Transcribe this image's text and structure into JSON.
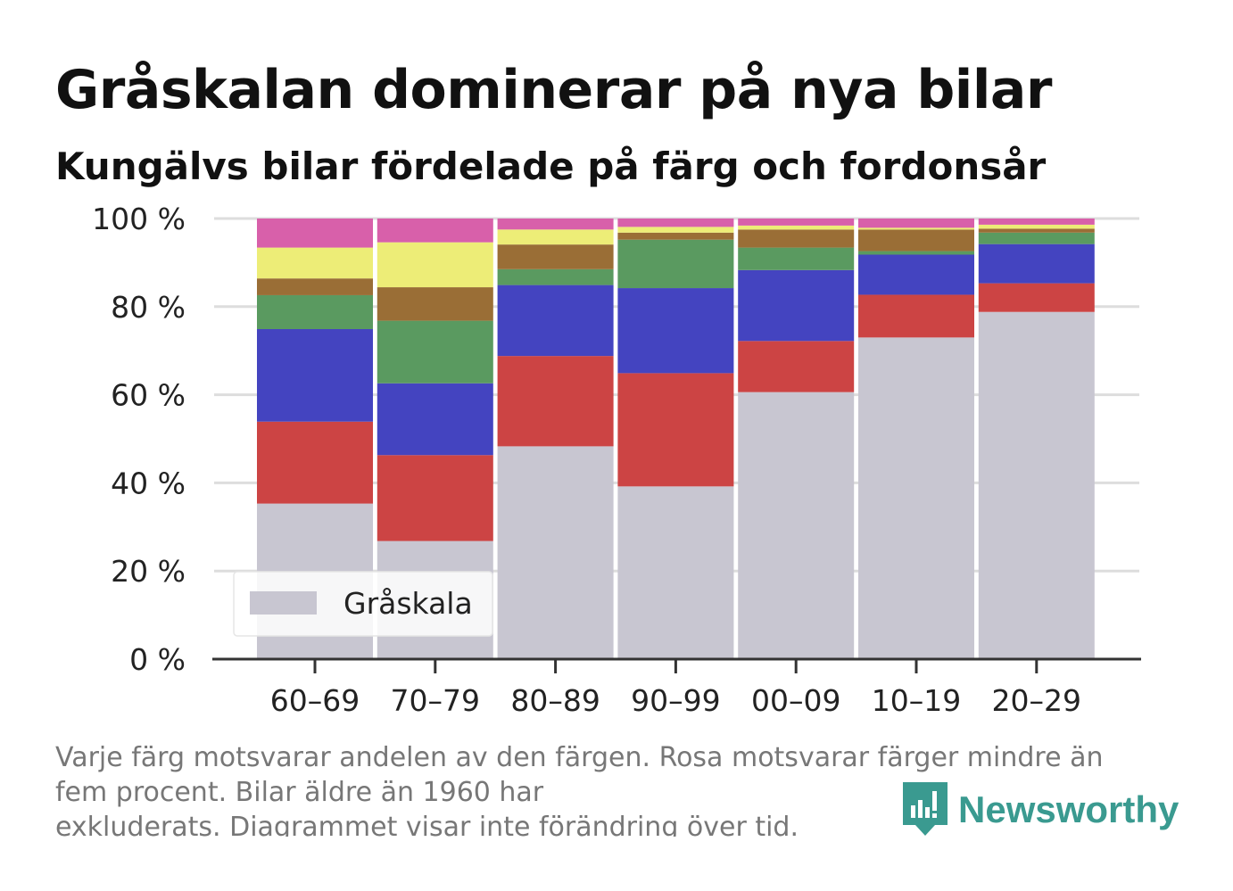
{
  "header": {
    "title": "Gråskalan dominerar på nya bilar",
    "subtitle": "Kungälvs bilar fördelade på färg och fordonsår"
  },
  "footnote": {
    "line1": "Varje färg motsvarar andelen av den färgen. Rosa motsvarar färger mindre än",
    "line2": "fem procent. Bilar äldre än 1960 har",
    "line3": "exkluderats. Diagrammet visar inte förändring över tid."
  },
  "brand": {
    "name": "Newsworthy",
    "icon": "newsworthy-logo-icon",
    "color": "#3a9a90"
  },
  "chart_data": {
    "type": "bar",
    "stacked": true,
    "categories": [
      "60–69",
      "70–79",
      "80–89",
      "90–99",
      "00–09",
      "10–19",
      "20–29"
    ],
    "ylim": [
      0,
      100
    ],
    "yticks": [
      0,
      20,
      40,
      60,
      80,
      100
    ],
    "ytick_labels": [
      "0 %",
      "20 %",
      "40 %",
      "60 %",
      "80 %",
      "100 %"
    ],
    "grid": true,
    "legend": {
      "position": "bottom-left",
      "entries": [
        "Gråskala"
      ]
    },
    "series": [
      {
        "name": "Gråskala",
        "color": "#c8c6d1",
        "values": [
          35.3,
          26.8,
          48.3,
          39.2,
          60.6,
          73.0,
          78.8
        ]
      },
      {
        "color": "#cc4444",
        "values": [
          18.6,
          19.5,
          20.5,
          25.7,
          11.6,
          9.7,
          6.5
        ]
      },
      {
        "color": "#4444c0",
        "values": [
          21.0,
          16.3,
          16.1,
          19.3,
          16.1,
          9.1,
          8.9
        ]
      },
      {
        "color": "#5a9a60",
        "values": [
          7.7,
          14.2,
          3.6,
          11.0,
          5.1,
          0.8,
          2.6
        ]
      },
      {
        "color": "#9a6e36",
        "values": [
          3.8,
          7.6,
          5.6,
          1.6,
          4.1,
          4.9,
          0.9
        ]
      },
      {
        "color": "#eded77",
        "values": [
          7.0,
          10.2,
          3.4,
          1.3,
          0.9,
          0.4,
          0.9
        ]
      },
      {
        "color": "#d860aa",
        "values": [
          6.6,
          5.4,
          2.5,
          1.9,
          1.6,
          2.1,
          1.4
        ]
      }
    ]
  }
}
